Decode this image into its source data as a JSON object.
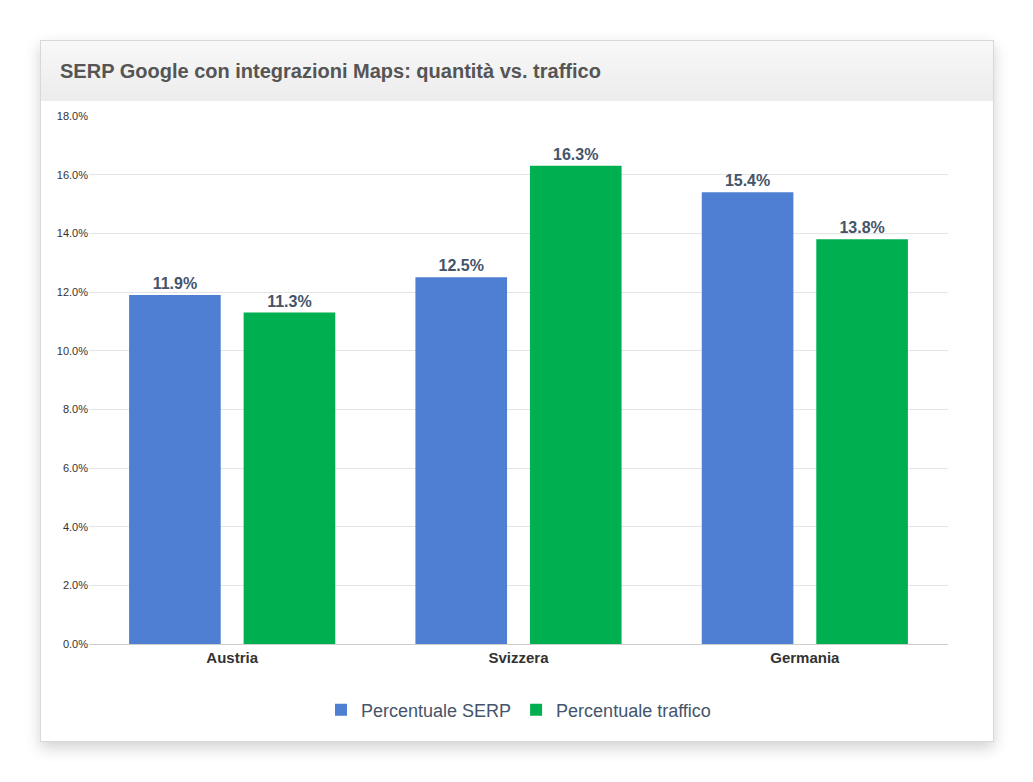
{
  "chart_data": {
    "type": "bar",
    "title": "SERP Google con integrazioni Maps: quantità vs. traffico",
    "categories": [
      "Austria",
      "Svizzera",
      "Germania"
    ],
    "series": [
      {
        "name": "Percentuale SERP",
        "color": "#4f7fd3",
        "values": [
          11.9,
          12.5,
          15.4
        ],
        "value_labels": [
          "11.9%",
          "12.5%",
          "15.4%"
        ]
      },
      {
        "name": "Percentuale traffico",
        "color": "#00b050",
        "values": [
          11.3,
          16.3,
          13.8
        ],
        "value_labels": [
          "11.3%",
          "16.3%",
          "13.8%"
        ]
      }
    ],
    "ylim": [
      0,
      18
    ],
    "yticks": [
      {
        "value": 0,
        "label": "0.0%"
      },
      {
        "value": 2,
        "label": "2.0%"
      },
      {
        "value": 4,
        "label": "4.0%"
      },
      {
        "value": 6,
        "label": "6.0%"
      },
      {
        "value": 8,
        "label": "8.0%"
      },
      {
        "value": 10,
        "label": "10.0%"
      },
      {
        "value": 12,
        "label": "12.0%"
      },
      {
        "value": 14,
        "label": "14.0%"
      },
      {
        "value": 16,
        "label": "16.0%"
      },
      {
        "value": 18,
        "label": "18.0%"
      }
    ],
    "grid": true,
    "legend": "bottom",
    "data_labels": true
  }
}
